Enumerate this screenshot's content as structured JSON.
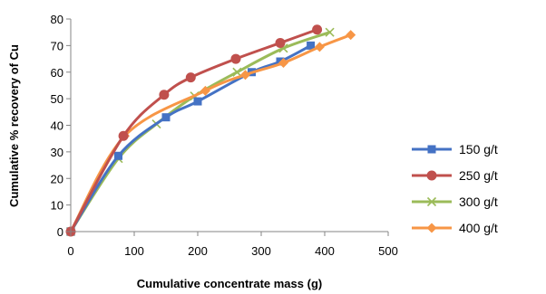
{
  "chart_data": {
    "type": "line",
    "title": "",
    "xlabel": "Cumulative concentrate mass (g)",
    "ylabel": "Cumulative % recovery of Cu",
    "xlim": [
      0,
      500
    ],
    "ylim": [
      0,
      80
    ],
    "xticks": [
      "0",
      "100",
      "200",
      "300",
      "400",
      "500"
    ],
    "yticks": [
      "0",
      "10",
      "20",
      "30",
      "40",
      "50",
      "60",
      "70",
      "80"
    ],
    "grid": false,
    "legend_position": "right",
    "series": [
      {
        "name": "150 g/t",
        "color": "#4472C4",
        "marker": "square",
        "x": [
          0,
          75,
          150,
          200,
          285,
          330,
          378
        ],
        "y": [
          0,
          28.5,
          43,
          49,
          60,
          64,
          70
        ]
      },
      {
        "name": "250 g/t",
        "color": "#C0504D",
        "marker": "circle",
        "x": [
          0,
          83,
          147,
          189,
          260,
          330,
          388
        ],
        "y": [
          0,
          36,
          51.5,
          58,
          65,
          71,
          76
        ]
      },
      {
        "name": "300 g/t",
        "color": "#9BBB59",
        "marker": "x",
        "x": [
          0,
          75,
          135,
          195,
          262,
          335,
          408
        ],
        "y": [
          0,
          27.5,
          40.5,
          51,
          60,
          69,
          75
        ]
      },
      {
        "name": "400 g/t",
        "color": "#F79646",
        "marker": "diamond",
        "x": [
          0,
          85,
          212,
          275,
          335,
          392,
          441
        ],
        "y": [
          0,
          36,
          53,
          59,
          63.5,
          69.5,
          74
        ]
      }
    ]
  }
}
